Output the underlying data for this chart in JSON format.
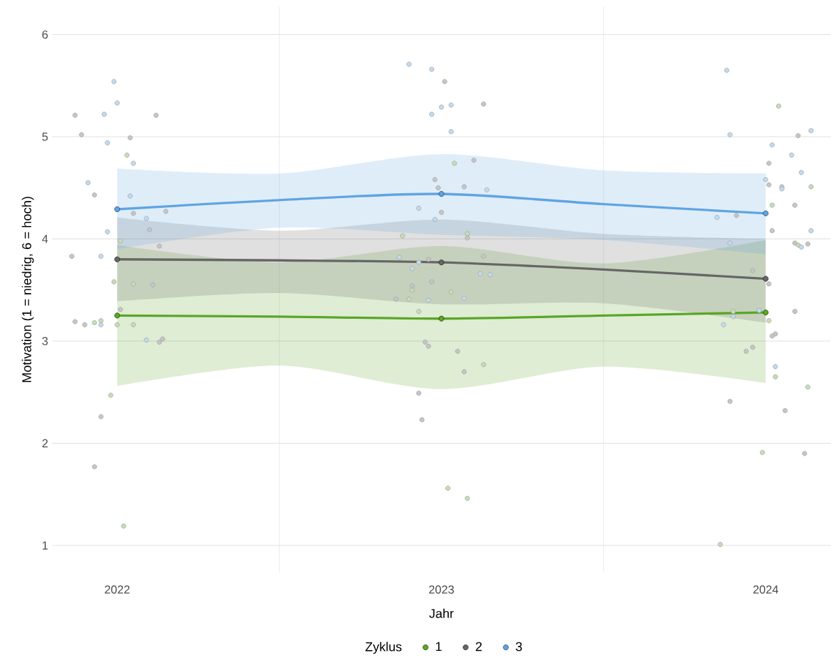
{
  "chart_data": {
    "type": "line",
    "xlabel": "Jahr",
    "ylabel": "Motivation (1 = niedrig, 6 = hoch)",
    "legend_title": "Zyklus",
    "legend": "bottom",
    "grid": true,
    "marker": "circle",
    "xlim": [
      2021.8,
      2024.2
    ],
    "ylim": [
      0.74,
      6.27
    ],
    "xticks": [
      2022,
      {
        "value": 2022.5,
        "label": null
      },
      2023,
      {
        "value": 2023.5,
        "label": null
      },
      2024
    ],
    "yticks": [
      1,
      2,
      3,
      4,
      5,
      6
    ],
    "series": [
      {
        "type": "scatter",
        "color": "#c4e0b0",
        "x": [
          2022.03,
          2022.01,
          2021.99,
          2022.05,
          2021.93,
          2021.95,
          2022.0,
          2022.05,
          2021.98,
          2022.02,
          2023.04,
          2022.88,
          2023.08,
          2022.91,
          2022.9,
          2023.03,
          2022.93,
          2023.13,
          2023.02,
          2023.08,
          2024.04,
          2024.14,
          2024.02,
          2024.1,
          2023.9,
          2024.01,
          2024.03,
          2024.13,
          2023.99,
          2023.86
        ],
        "values": [
          4.82,
          3.98,
          3.58,
          3.56,
          3.18,
          3.2,
          3.16,
          3.16,
          2.47,
          1.19,
          4.74,
          4.03,
          4.05,
          3.5,
          3.41,
          3.48,
          3.29,
          2.77,
          1.56,
          1.46,
          5.3,
          4.51,
          4.33,
          3.94,
          3.29,
          3.2,
          2.65,
          2.55,
          1.91,
          1.01
        ]
      },
      {
        "type": "scatter",
        "color": "#c6c6c6",
        "x": [
          2021.87,
          2022.12,
          2021.89,
          2022.04,
          2021.93,
          2022.05,
          2022.15,
          2022.1,
          2022.13,
          2021.86,
          2022.11,
          2022.01,
          2021.87,
          2021.9,
          2022.13,
          2022.14,
          2021.95,
          2021.93,
          2023.01,
          2023.13,
          2023.1,
          2022.98,
          2022.99,
          2023.07,
          2023.0,
          2023.08,
          2022.96,
          2023.13,
          2022.91,
          2022.97,
          2022.86,
          2022.95,
          2022.96,
          2023.05,
          2023.07,
          2022.93,
          2022.94,
          2024.1,
          2024.01,
          2024.01,
          2024.05,
          2024.09,
          2023.91,
          2024.02,
          2024.09,
          2024.13,
          2023.96,
          2024.01,
          2024.09,
          2024.02,
          2024.03,
          2023.96,
          2023.94,
          2023.89,
          2024.06,
          2024.12
        ],
        "values": [
          5.21,
          5.21,
          5.02,
          4.99,
          4.43,
          4.25,
          4.27,
          4.09,
          3.93,
          3.83,
          3.55,
          3.31,
          3.19,
          3.16,
          2.99,
          3.02,
          2.26,
          1.77,
          5.54,
          5.32,
          4.77,
          4.58,
          4.5,
          4.51,
          4.26,
          4.01,
          3.8,
          3.83,
          3.54,
          3.58,
          3.41,
          2.99,
          2.95,
          2.9,
          2.7,
          2.49,
          2.23,
          5.01,
          4.74,
          4.53,
          4.51,
          4.33,
          4.23,
          4.08,
          3.96,
          3.95,
          3.69,
          3.56,
          3.29,
          3.05,
          3.07,
          2.94,
          2.9,
          2.41,
          2.32,
          1.9
        ]
      },
      {
        "type": "scatter",
        "color": "#c0dcf5",
        "x": [
          2021.99,
          2022.0,
          2021.96,
          2021.97,
          2022.05,
          2021.91,
          2022.04,
          2022.09,
          2021.97,
          2021.95,
          2021.95,
          2022.09,
          2022.9,
          2022.97,
          2023.0,
          2023.03,
          2022.97,
          2023.03,
          2023.14,
          2022.93,
          2022.98,
          2022.87,
          2022.93,
          2022.91,
          2023.12,
          2023.15,
          2022.96,
          2023.07,
          2023.88,
          2023.89,
          2024.14,
          2024.02,
          2024.08,
          2024.11,
          2024.0,
          2024.05,
          2023.85,
          2024.14,
          2023.89,
          2024.11,
          2023.9,
          2023.98,
          2023.87,
          2024.03
        ],
        "values": [
          5.54,
          5.33,
          5.22,
          4.94,
          4.74,
          4.55,
          4.42,
          4.2,
          4.07,
          3.83,
          3.16,
          3.01,
          5.71,
          5.66,
          5.29,
          5.31,
          5.22,
          5.05,
          4.48,
          4.3,
          4.19,
          3.82,
          3.77,
          3.71,
          3.66,
          3.65,
          3.4,
          3.42,
          5.65,
          5.02,
          5.06,
          4.92,
          4.82,
          4.65,
          4.58,
          4.49,
          4.21,
          4.08,
          3.96,
          3.92,
          3.24,
          3.3,
          3.16,
          2.75
        ]
      },
      {
        "marker": "none",
        "color": "#5aa626",
        "x": [
          2022,
          2022.5,
          2023,
          2023.5,
          2024
        ],
        "values": [
          3.25,
          3.24,
          3.22,
          3.25,
          3.28
        ],
        "lower": [
          2.56,
          2.76,
          2.53,
          2.75,
          2.59
        ],
        "upper": [
          3.94,
          3.77,
          3.93,
          3.76,
          3.99
        ]
      },
      {
        "marker": "none",
        "color": "#666666",
        "x": [
          2022,
          2022.5,
          2023,
          2023.5,
          2024
        ],
        "values": [
          3.8,
          3.79,
          3.77,
          3.7,
          3.61
        ],
        "lower": [
          3.39,
          3.47,
          3.36,
          3.37,
          3.18
        ],
        "upper": [
          4.21,
          4.08,
          4.19,
          4.05,
          4.0
        ]
      },
      {
        "marker": "none",
        "color": "#5fa4e2",
        "x": [
          2022,
          2022.5,
          2023,
          2023.5,
          2024
        ],
        "values": [
          4.29,
          4.38,
          4.44,
          4.34,
          4.25
        ],
        "lower": [
          3.9,
          4.11,
          4.04,
          3.99,
          3.85
        ],
        "upper": [
          4.69,
          4.64,
          4.83,
          4.67,
          4.64
        ]
      },
      {
        "type": "scatter",
        "name": "1",
        "color": "#5aa626",
        "x": [
          2022,
          2023,
          2024
        ],
        "values": [
          3.25,
          3.22,
          3.28
        ]
      },
      {
        "type": "scatter",
        "name": "2",
        "color": "#666666",
        "x": [
          2022,
          2023,
          2024
        ],
        "values": [
          3.8,
          3.77,
          3.61
        ]
      },
      {
        "type": "scatter",
        "name": "3",
        "color": "#5fa4e2",
        "x": [
          2022,
          2023,
          2024
        ],
        "values": [
          4.29,
          4.44,
          4.25
        ]
      }
    ]
  }
}
